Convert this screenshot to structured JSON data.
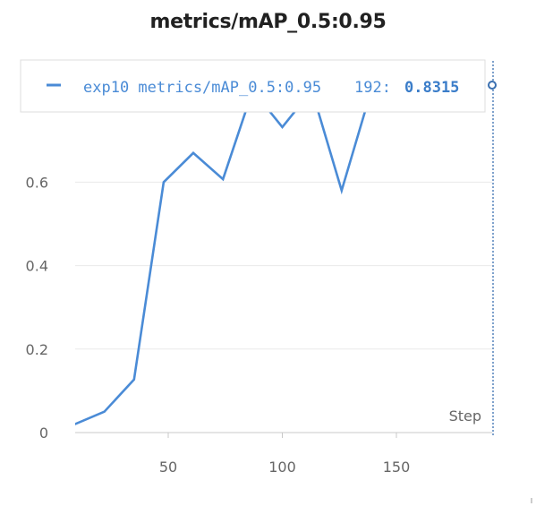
{
  "chart_data": {
    "type": "line",
    "title": "metrics/mAP_0.5:0.95",
    "xlabel": "Step",
    "ylabel": "",
    "xlim": [
      10,
      190
    ],
    "ylim": [
      0,
      0.76
    ],
    "x_ticks": [
      50,
      100,
      150
    ],
    "y_ticks": [
      0,
      0.2,
      0.4,
      0.6
    ],
    "x_tick_labels": [
      "50",
      "100",
      "150"
    ],
    "y_tick_labels": [
      "0",
      "0.2",
      "0.4",
      "0.6"
    ],
    "grid": true,
    "legend_position": "top",
    "series": [
      {
        "name": "exp10 metrics/mAP_0.5:0.95",
        "color": "#4a8bd6",
        "x": [
          9,
          22,
          35,
          48,
          61,
          74,
          87,
          100,
          113,
          126,
          139
        ],
        "y": [
          0.02,
          0.05,
          0.127,
          0.6,
          0.67,
          0.607,
          0.82,
          0.732,
          0.82,
          0.58,
          0.82
        ]
      }
    ],
    "tooltip": {
      "series_label": "exp10 metrics/mAP_0.5:0.95",
      "step": "192:",
      "value": "0.8315"
    }
  },
  "colors": {
    "series": "#4a8bd6",
    "grid": "#e9e9e9",
    "axis": "#c8c8c8",
    "crosshair": "#3a6fb0"
  }
}
